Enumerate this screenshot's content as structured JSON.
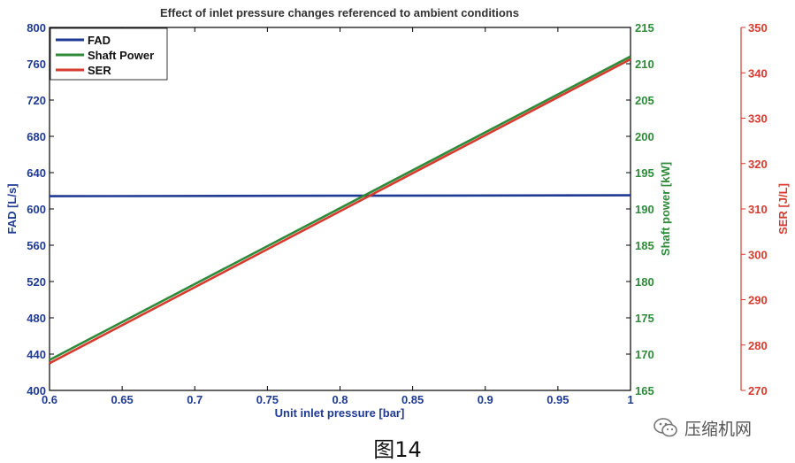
{
  "chart_data": {
    "type": "line",
    "title": "Effect of inlet pressure changes referenced to ambient conditions",
    "xlabel": "Unit inlet pressure [bar]",
    "xlim": [
      0.6,
      1.0
    ],
    "xticks": [
      "0.6",
      "0.65",
      "0.7",
      "0.75",
      "0.8",
      "0.85",
      "0.9",
      "0.95",
      "1"
    ],
    "axes": {
      "left": {
        "label": "FAD [L/s]",
        "lim": [
          400,
          800
        ],
        "ticks": [
          "400",
          "440",
          "480",
          "520",
          "560",
          "600",
          "640",
          "680",
          "720",
          "760",
          "800"
        ],
        "color": "#1f3a93"
      },
      "right1": {
        "label": "Shaft power [kW]",
        "lim": [
          165,
          215
        ],
        "ticks": [
          "165",
          "170",
          "175",
          "180",
          "185",
          "190",
          "195",
          "200",
          "205",
          "210",
          "215"
        ],
        "color": "#2e8b3a"
      },
      "right2": {
        "label": "SER [J/L]",
        "lim": [
          270,
          350
        ],
        "ticks": [
          "270",
          "280",
          "290",
          "300",
          "310",
          "320",
          "330",
          "340",
          "350"
        ],
        "color": "#d73a2e"
      }
    },
    "series": [
      {
        "name": "FAD",
        "axis": "left",
        "color": "#1f3a93",
        "x": [
          0.6,
          1.0
        ],
        "y": [
          614,
          615
        ]
      },
      {
        "name": "Shaft Power",
        "axis": "right1",
        "color": "#2e8b3a",
        "x": [
          0.6,
          1.0
        ],
        "y": [
          169.2,
          211.0
        ]
      },
      {
        "name": "SER",
        "axis": "right2",
        "color": "#d73a2e",
        "x": [
          0.6,
          1.0
        ],
        "y": [
          276.0,
          343.0
        ]
      }
    ],
    "legend": {
      "position": "top-left",
      "entries": [
        "FAD",
        "Shaft Power",
        "SER"
      ]
    },
    "grid": false
  },
  "caption": "图14",
  "watermark": {
    "text": "压缩机网",
    "icon": "wechat-icon"
  }
}
